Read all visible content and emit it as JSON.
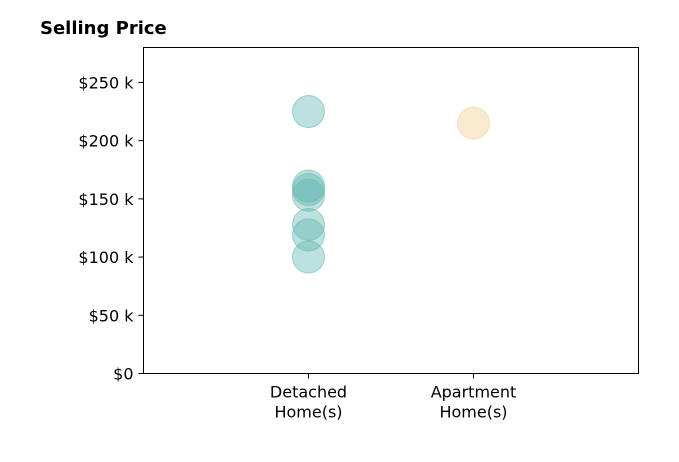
{
  "chart_data": {
    "type": "scatter",
    "title": "Selling Price",
    "xlabel": "",
    "ylabel": "",
    "categories": [
      {
        "lines": [
          "Detached",
          "Home(s)"
        ]
      },
      {
        "lines": [
          "Apartment",
          "Home(s)"
        ]
      }
    ],
    "xlim": [
      -1,
      2
    ],
    "ylim": [
      0,
      280000
    ],
    "grid": false,
    "y_ticks": [
      {
        "value": 0,
        "label": "$0"
      },
      {
        "value": 50000,
        "label": "$50 k"
      },
      {
        "value": 100000,
        "label": "$100 k"
      },
      {
        "value": 150000,
        "label": "$150 k"
      },
      {
        "value": 200000,
        "label": "$200 k"
      },
      {
        "value": 250000,
        "label": "$250 k"
      }
    ],
    "series": [
      {
        "category_index": 0,
        "color": "#5ab4ac",
        "opacity": 0.4,
        "values": [
          225000,
          161000,
          158000,
          153000,
          128000,
          119000,
          100000
        ]
      },
      {
        "category_index": 1,
        "color": "#f0d9a6",
        "opacity": 0.55,
        "values": [
          215000
        ]
      }
    ]
  }
}
